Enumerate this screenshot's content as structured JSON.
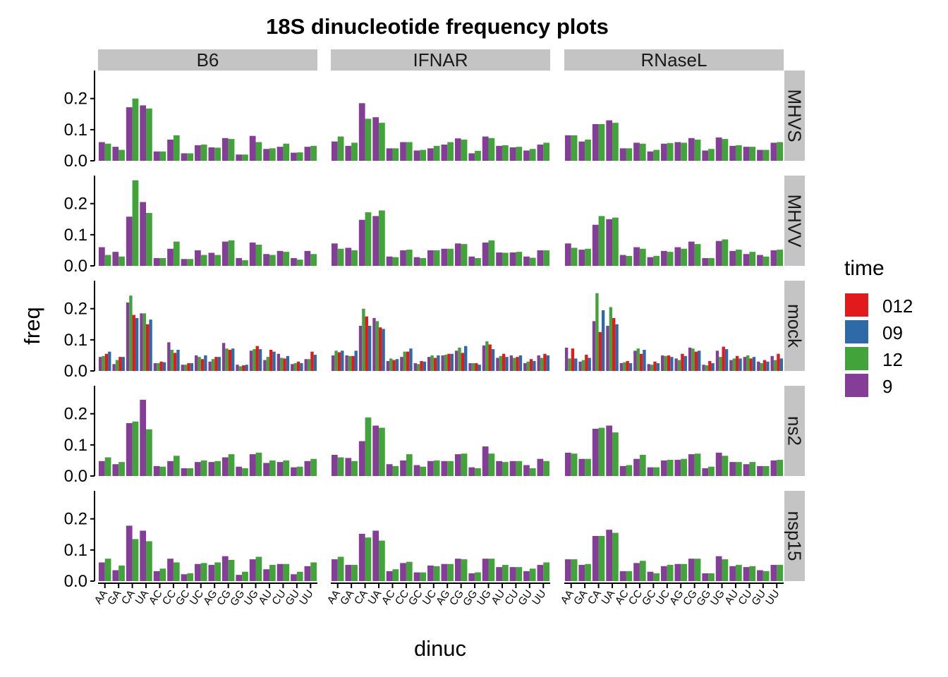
{
  "chart_data": {
    "type": "bar",
    "title": "18S dinucleotide frequency plots",
    "xlabel": "dinuc",
    "ylabel": "freq",
    "ylim": [
      0,
      0.29
    ],
    "yticks": [
      "0.0",
      "0.1",
      "0.2"
    ],
    "categories": [
      "AA",
      "GA",
      "CA",
      "UA",
      "AC",
      "CC",
      "GC",
      "UC",
      "AG",
      "CG",
      "GG",
      "UG",
      "AU",
      "CU",
      "GU",
      "UU"
    ],
    "columns": [
      "B6",
      "IFNAR",
      "RNaseL"
    ],
    "rows": [
      "MHVS",
      "MHVV",
      "mock",
      "ns2",
      "nsp15"
    ],
    "legend": {
      "title": "time",
      "position": "right",
      "entries": [
        {
          "name": "012",
          "color": "#e31a1c"
        },
        {
          "name": "09",
          "color": "#2f6aa8"
        },
        {
          "name": "12",
          "color": "#41a339"
        },
        {
          "name": "9",
          "color": "#853e98"
        }
      ]
    },
    "panels": {
      "MHVS": {
        "B6": {
          "12": [
            0.055,
            0.035,
            0.2,
            0.168,
            0.03,
            0.082,
            0.024,
            0.052,
            0.042,
            0.07,
            0.02,
            0.06,
            0.04,
            0.055,
            0.027,
            0.048
          ],
          "9": [
            0.06,
            0.045,
            0.172,
            0.178,
            0.03,
            0.068,
            0.024,
            0.05,
            0.043,
            0.073,
            0.02,
            0.08,
            0.038,
            0.045,
            0.026,
            0.045
          ]
        },
        "IFNAR": {
          "12": [
            0.078,
            0.058,
            0.135,
            0.122,
            0.04,
            0.06,
            0.035,
            0.048,
            0.06,
            0.068,
            0.032,
            0.073,
            0.05,
            0.045,
            0.038,
            0.058
          ],
          "9": [
            0.062,
            0.048,
            0.185,
            0.14,
            0.04,
            0.06,
            0.033,
            0.04,
            0.052,
            0.072,
            0.024,
            0.078,
            0.048,
            0.043,
            0.033,
            0.052
          ]
        },
        "RNaseL": {
          "12": [
            0.082,
            0.068,
            0.118,
            0.122,
            0.04,
            0.055,
            0.035,
            0.057,
            0.058,
            0.068,
            0.038,
            0.07,
            0.05,
            0.045,
            0.035,
            0.06
          ],
          "9": [
            0.082,
            0.062,
            0.118,
            0.13,
            0.04,
            0.058,
            0.03,
            0.055,
            0.06,
            0.073,
            0.033,
            0.075,
            0.048,
            0.045,
            0.035,
            0.058
          ]
        }
      },
      "MHVV": {
        "B6": {
          "12": [
            0.035,
            0.03,
            0.275,
            0.17,
            0.025,
            0.078,
            0.022,
            0.035,
            0.035,
            0.082,
            0.018,
            0.068,
            0.035,
            0.045,
            0.02,
            0.038
          ],
          "9": [
            0.06,
            0.045,
            0.158,
            0.205,
            0.025,
            0.055,
            0.022,
            0.05,
            0.042,
            0.078,
            0.025,
            0.075,
            0.038,
            0.048,
            0.025,
            0.048
          ]
        },
        "IFNAR": {
          "12": [
            0.055,
            0.05,
            0.172,
            0.178,
            0.028,
            0.052,
            0.025,
            0.05,
            0.055,
            0.07,
            0.025,
            0.082,
            0.042,
            0.045,
            0.026,
            0.05
          ],
          "9": [
            0.072,
            0.058,
            0.148,
            0.16,
            0.03,
            0.05,
            0.028,
            0.05,
            0.055,
            0.072,
            0.03,
            0.075,
            0.043,
            0.043,
            0.03,
            0.05
          ]
        },
        "RNaseL": {
          "12": [
            0.058,
            0.055,
            0.16,
            0.155,
            0.032,
            0.055,
            0.032,
            0.045,
            0.055,
            0.07,
            0.025,
            0.085,
            0.052,
            0.045,
            0.03,
            0.052
          ],
          "9": [
            0.072,
            0.052,
            0.132,
            0.15,
            0.035,
            0.06,
            0.028,
            0.048,
            0.06,
            0.078,
            0.025,
            0.08,
            0.048,
            0.038,
            0.035,
            0.05
          ]
        }
      },
      "mock": {
        "B6": {
          "012": [
            0.055,
            0.045,
            0.18,
            0.15,
            0.03,
            0.058,
            0.025,
            0.038,
            0.045,
            0.068,
            0.018,
            0.08,
            0.068,
            0.04,
            0.03,
            0.062
          ],
          "09": [
            0.062,
            0.045,
            0.17,
            0.165,
            0.028,
            0.068,
            0.025,
            0.05,
            0.045,
            0.072,
            0.02,
            0.07,
            0.062,
            0.048,
            0.025,
            0.052
          ],
          "12": [
            0.048,
            0.035,
            0.242,
            0.185,
            0.025,
            0.068,
            0.02,
            0.045,
            0.038,
            0.072,
            0.015,
            0.07,
            0.045,
            0.042,
            0.025,
            0.038
          ],
          "9": [
            0.045,
            0.022,
            0.22,
            0.185,
            0.025,
            0.092,
            0.02,
            0.05,
            0.03,
            0.09,
            0.02,
            0.065,
            0.035,
            0.055,
            0.022,
            0.038
          ]
        },
        "IFNAR": {
          "012": [
            0.06,
            0.048,
            0.175,
            0.14,
            0.035,
            0.062,
            0.032,
            0.042,
            0.055,
            0.058,
            0.025,
            0.085,
            0.055,
            0.045,
            0.038,
            0.055
          ],
          "09": [
            0.065,
            0.065,
            0.145,
            0.135,
            0.038,
            0.072,
            0.03,
            0.05,
            0.055,
            0.08,
            0.02,
            0.07,
            0.045,
            0.05,
            0.032,
            0.05
          ],
          "12": [
            0.065,
            0.048,
            0.2,
            0.16,
            0.04,
            0.062,
            0.022,
            0.05,
            0.052,
            0.075,
            0.025,
            0.095,
            0.048,
            0.042,
            0.03,
            0.042
          ],
          "9": [
            0.05,
            0.05,
            0.145,
            0.17,
            0.032,
            0.045,
            0.025,
            0.045,
            0.05,
            0.065,
            0.025,
            0.082,
            0.042,
            0.05,
            0.025,
            0.05
          ]
        },
        "RNaseL": {
          "012": [
            0.072,
            0.052,
            0.125,
            0.17,
            0.032,
            0.055,
            0.03,
            0.05,
            0.055,
            0.062,
            0.032,
            0.078,
            0.048,
            0.04,
            0.035,
            0.055
          ],
          "09": [
            0.04,
            0.042,
            0.195,
            0.15,
            0.025,
            0.068,
            0.025,
            0.045,
            0.048,
            0.065,
            0.025,
            0.07,
            0.04,
            0.045,
            0.03,
            0.04
          ],
          "12": [
            0.04,
            0.035,
            0.25,
            0.205,
            0.028,
            0.072,
            0.02,
            0.048,
            0.035,
            0.072,
            0.018,
            0.045,
            0.04,
            0.05,
            0.025,
            0.035
          ],
          "9": [
            0.075,
            0.03,
            0.16,
            0.145,
            0.025,
            0.065,
            0.022,
            0.05,
            0.04,
            0.075,
            0.02,
            0.065,
            0.035,
            0.045,
            0.03,
            0.048
          ]
        }
      },
      "ns2": {
        "B6": {
          "12": [
            0.06,
            0.045,
            0.175,
            0.15,
            0.03,
            0.065,
            0.025,
            0.05,
            0.048,
            0.07,
            0.025,
            0.075,
            0.05,
            0.05,
            0.03,
            0.055
          ],
          "9": [
            0.048,
            0.038,
            0.17,
            0.245,
            0.032,
            0.048,
            0.025,
            0.045,
            0.045,
            0.06,
            0.03,
            0.07,
            0.042,
            0.045,
            0.028,
            0.048
          ]
        },
        "IFNAR": {
          "12": [
            0.06,
            0.048,
            0.188,
            0.155,
            0.032,
            0.07,
            0.03,
            0.05,
            0.048,
            0.072,
            0.025,
            0.072,
            0.045,
            0.048,
            0.025,
            0.048
          ],
          "9": [
            0.068,
            0.058,
            0.112,
            0.162,
            0.038,
            0.05,
            0.035,
            0.048,
            0.048,
            0.07,
            0.028,
            0.095,
            0.048,
            0.048,
            0.035,
            0.055
          ]
        },
        "RNaseL": {
          "12": [
            0.072,
            0.055,
            0.155,
            0.14,
            0.035,
            0.068,
            0.028,
            0.052,
            0.055,
            0.072,
            0.03,
            0.065,
            0.045,
            0.045,
            0.032,
            0.052
          ],
          "9": [
            0.075,
            0.055,
            0.152,
            0.162,
            0.032,
            0.055,
            0.028,
            0.05,
            0.052,
            0.07,
            0.025,
            0.075,
            0.045,
            0.038,
            0.032,
            0.05
          ]
        }
      },
      "nsp15": {
        "B6": {
          "12": [
            0.072,
            0.05,
            0.135,
            0.128,
            0.04,
            0.06,
            0.025,
            0.058,
            0.06,
            0.068,
            0.03,
            0.078,
            0.052,
            0.055,
            0.03,
            0.06
          ],
          "9": [
            0.06,
            0.035,
            0.178,
            0.162,
            0.032,
            0.072,
            0.022,
            0.055,
            0.052,
            0.08,
            0.02,
            0.07,
            0.038,
            0.055,
            0.022,
            0.048
          ]
        },
        "IFNAR": {
          "12": [
            0.078,
            0.052,
            0.14,
            0.13,
            0.038,
            0.062,
            0.028,
            0.048,
            0.055,
            0.07,
            0.028,
            0.072,
            0.052,
            0.045,
            0.04,
            0.06
          ],
          "9": [
            0.07,
            0.052,
            0.152,
            0.162,
            0.032,
            0.058,
            0.028,
            0.05,
            0.055,
            0.072,
            0.025,
            0.072,
            0.045,
            0.045,
            0.032,
            0.052
          ]
        },
        "RNaseL": {
          "12": [
            0.07,
            0.055,
            0.145,
            0.155,
            0.032,
            0.065,
            0.025,
            0.052,
            0.055,
            0.072,
            0.025,
            0.07,
            0.052,
            0.048,
            0.032,
            0.052
          ],
          "9": [
            0.07,
            0.052,
            0.145,
            0.165,
            0.032,
            0.058,
            0.03,
            0.048,
            0.055,
            0.072,
            0.025,
            0.08,
            0.048,
            0.045,
            0.035,
            0.052
          ]
        }
      }
    }
  }
}
